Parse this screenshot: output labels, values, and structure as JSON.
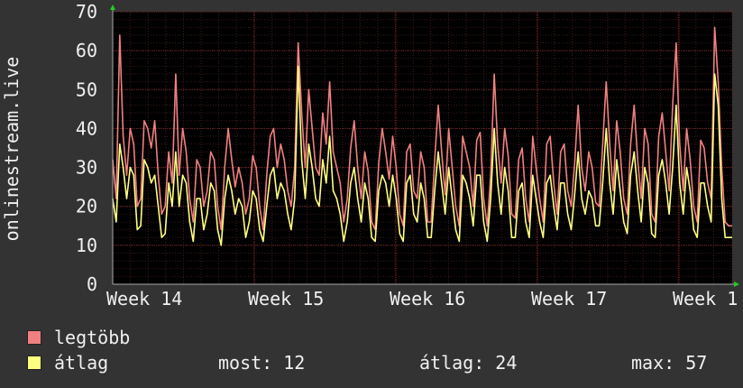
{
  "chart_data": {
    "type": "line",
    "ylabel": "onlinestream.live",
    "ylim": [
      0,
      70
    ],
    "yticks": [
      0,
      10,
      20,
      30,
      40,
      50,
      60,
      70
    ],
    "xticks": [
      "Week 14",
      "Week 15",
      "Week 16",
      "Week 17",
      "Week 1"
    ],
    "grid": true,
    "colors": {
      "background": "#333333",
      "plot": "#000000",
      "grid": "#5a2020",
      "max": "#f08080",
      "avg": "#ffff80"
    },
    "series": [
      {
        "name": "legtöbb",
        "values": [
          32,
          22,
          64,
          38,
          28,
          40,
          36,
          20,
          22,
          42,
          40,
          35,
          42,
          28,
          18,
          20,
          34,
          26,
          54,
          28,
          40,
          34,
          22,
          16,
          32,
          30,
          20,
          24,
          34,
          32,
          20,
          14,
          30,
          40,
          32,
          25,
          30,
          26,
          18,
          22,
          33,
          30,
          20,
          14,
          28,
          38,
          40,
          30,
          36,
          32,
          24,
          20,
          30,
          62,
          44,
          30,
          50,
          40,
          30,
          28,
          44,
          36,
          52,
          34,
          30,
          26,
          16,
          22,
          35,
          42,
          30,
          22,
          34,
          29,
          16,
          14,
          31,
          40,
          34,
          27,
          38,
          30,
          18,
          15,
          34,
          36,
          24,
          22,
          34,
          30,
          16,
          16,
          32,
          46,
          34,
          23,
          40,
          30,
          20,
          15,
          38,
          34,
          30,
          20,
          37,
          39,
          22,
          15,
          28,
          54,
          36,
          26,
          40,
          33,
          18,
          17,
          32,
          35,
          22,
          16,
          38,
          30,
          22,
          16,
          36,
          38,
          26,
          18,
          34,
          36,
          24,
          20,
          31,
          46,
          30,
          24,
          34,
          30,
          21,
          20,
          36,
          52,
          36,
          24,
          42,
          34,
          22,
          18,
          36,
          46,
          32,
          22,
          40,
          36,
          18,
          16,
          38,
          44,
          34,
          24,
          46,
          62,
          36,
          24,
          40,
          32,
          20,
          16,
          37,
          35,
          26,
          22,
          66,
          52,
          30,
          16,
          15,
          15
        ]
      },
      {
        "name": "átlag",
        "values": [
          22,
          16,
          36,
          30,
          22,
          30,
          28,
          14,
          15,
          32,
          30,
          26,
          28,
          20,
          12,
          13,
          26,
          20,
          34,
          20,
          28,
          26,
          16,
          11,
          22,
          22,
          14,
          18,
          26,
          24,
          14,
          10,
          22,
          28,
          24,
          18,
          22,
          20,
          12,
          16,
          24,
          22,
          14,
          11,
          20,
          28,
          30,
          22,
          26,
          24,
          18,
          14,
          22,
          56,
          32,
          22,
          36,
          30,
          22,
          20,
          32,
          26,
          38,
          24,
          22,
          18,
          11,
          16,
          26,
          30,
          22,
          16,
          26,
          22,
          12,
          11,
          24,
          28,
          26,
          20,
          28,
          22,
          13,
          11,
          26,
          28,
          18,
          16,
          26,
          22,
          12,
          12,
          24,
          34,
          26,
          18,
          30,
          22,
          14,
          11,
          28,
          26,
          22,
          15,
          28,
          28,
          16,
          11,
          22,
          40,
          26,
          18,
          30,
          24,
          12,
          12,
          24,
          26,
          16,
          12,
          28,
          22,
          16,
          12,
          26,
          28,
          20,
          14,
          26,
          26,
          18,
          14,
          23,
          34,
          22,
          18,
          24,
          22,
          15,
          15,
          26,
          40,
          26,
          18,
          32,
          24,
          16,
          13,
          28,
          34,
          24,
          16,
          30,
          26,
          13,
          12,
          28,
          32,
          26,
          18,
          30,
          46,
          26,
          18,
          30,
          24,
          14,
          12,
          26,
          26,
          20,
          16,
          54,
          46,
          22,
          12,
          12,
          12
        ]
      }
    ]
  },
  "legend": {
    "max_label": "legtöbb",
    "avg_label": "átlag"
  },
  "stats": {
    "now": "most: 12",
    "avg": "átlag: 24",
    "max": "max: 57"
  }
}
